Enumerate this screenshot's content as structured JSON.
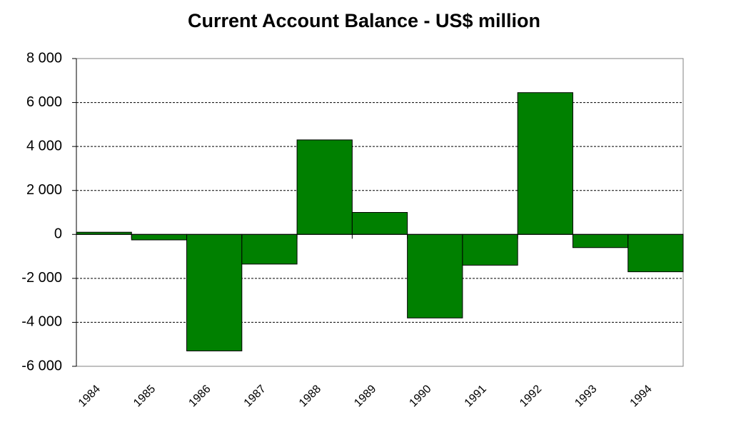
{
  "chart_data": {
    "type": "bar",
    "title": "Current Account Balance - US$ million",
    "categories": [
      "1984",
      "1985",
      "1986",
      "1987",
      "1988",
      "1989",
      "1990",
      "1991",
      "1992",
      "1993",
      "1994"
    ],
    "values": [
      100,
      -250,
      -5300,
      -1350,
      4300,
      1000,
      -3800,
      -1400,
      6450,
      -600,
      -1700
    ],
    "color": "#008000",
    "ylim": [
      -6000,
      8000
    ],
    "yticks": [
      {
        "value": -6000,
        "label": "-6 000"
      },
      {
        "value": -4000,
        "label": "-4 000"
      },
      {
        "value": -2000,
        "label": "-2 000"
      },
      0,
      {
        "value": 2000,
        "label": "2 000"
      },
      {
        "value": 4000,
        "label": "4 000"
      },
      {
        "value": 6000,
        "label": "6 000"
      },
      {
        "value": 8000,
        "label": "8 000"
      }
    ],
    "grid": true
  }
}
